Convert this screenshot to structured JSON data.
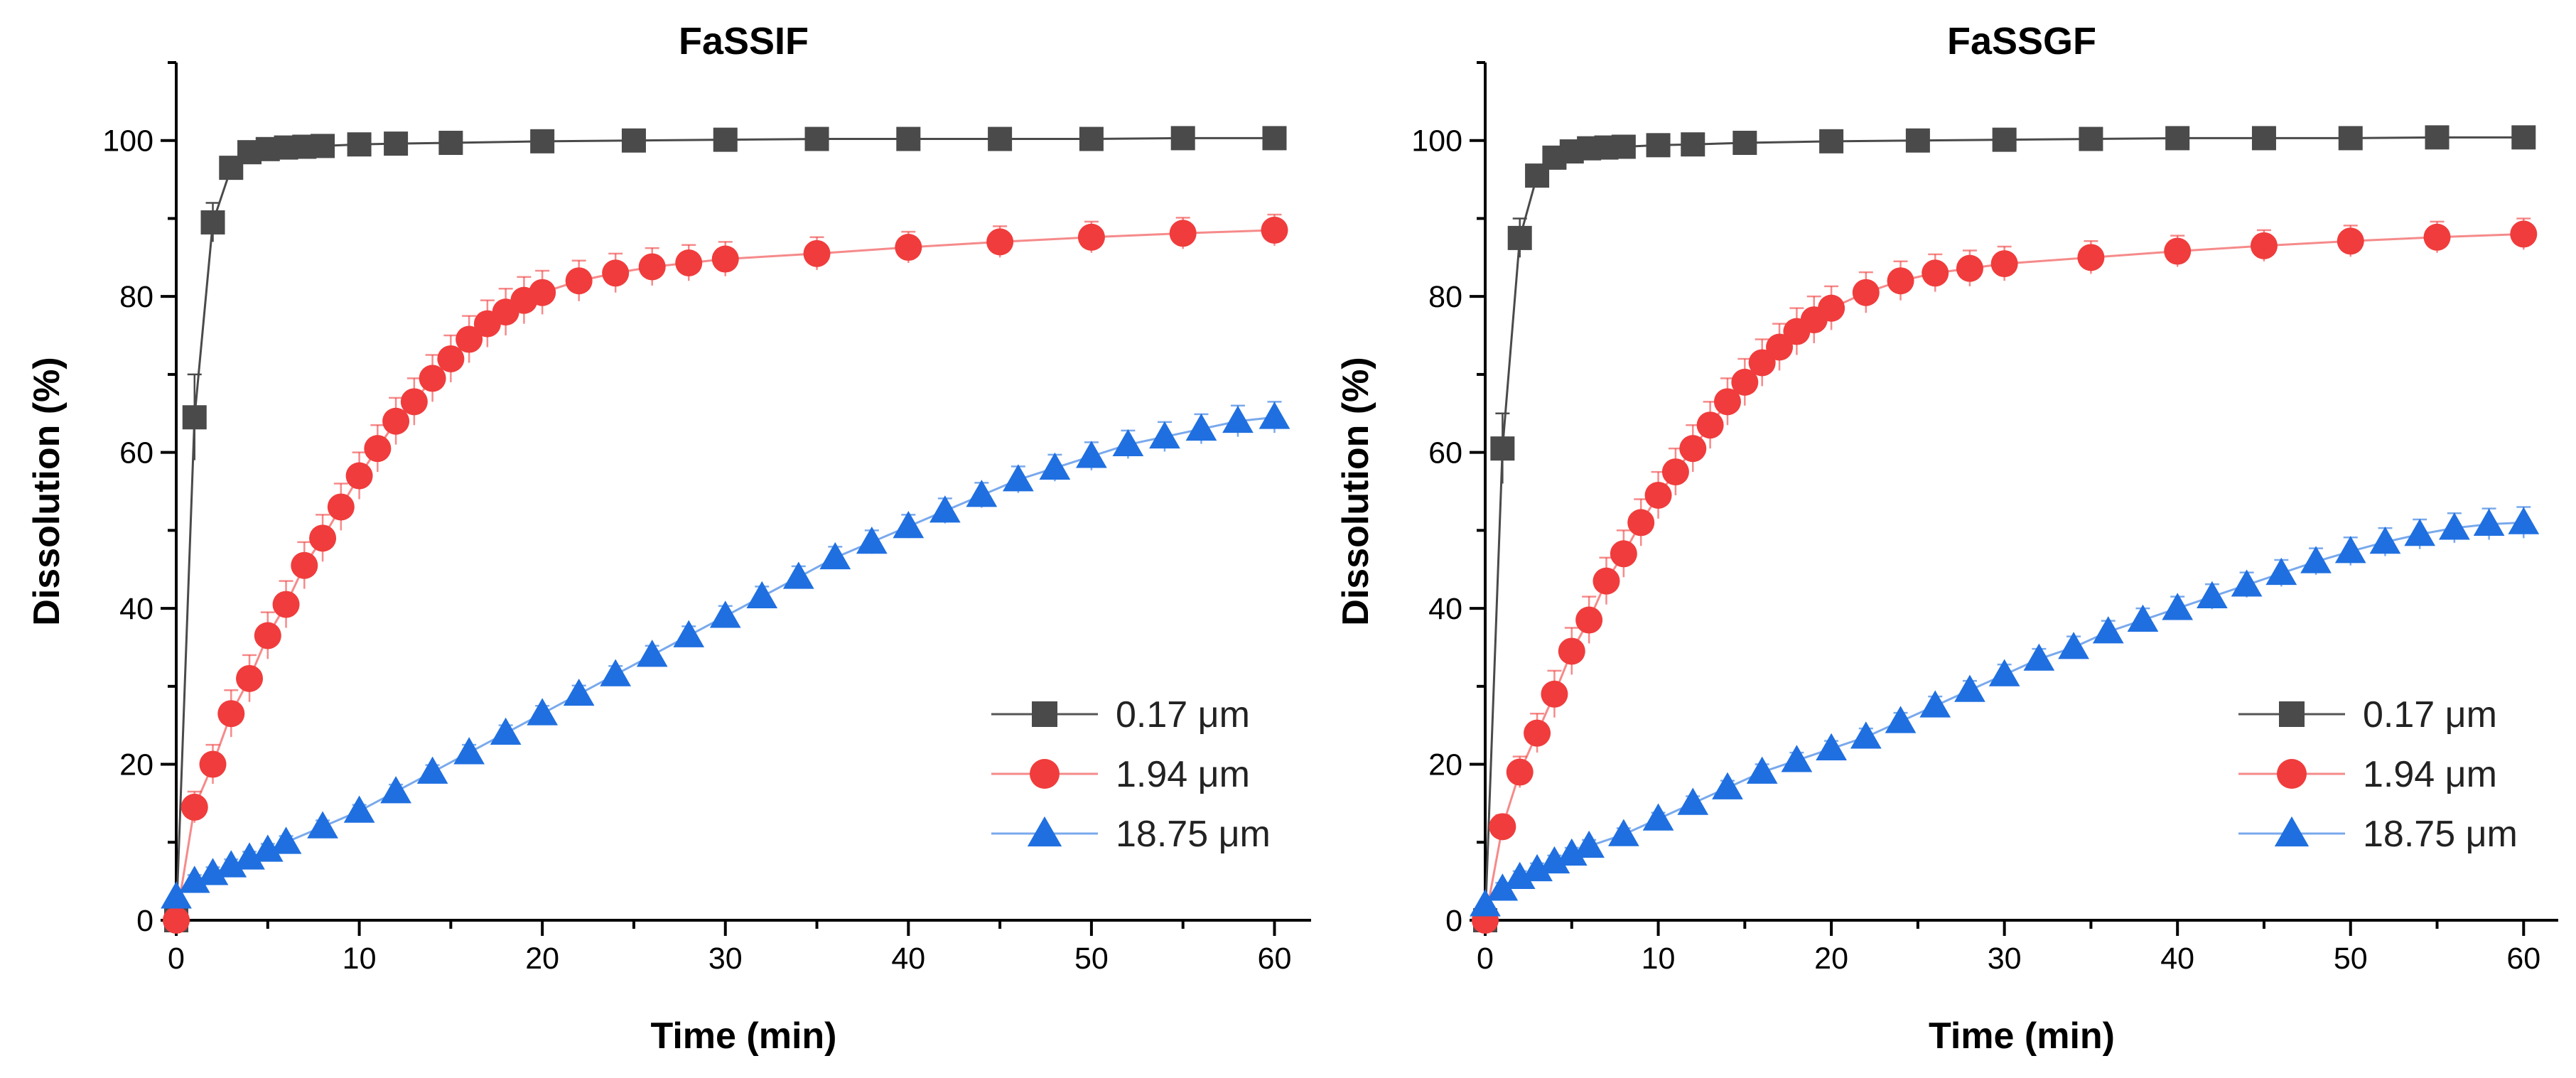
{
  "chart_data": [
    {
      "type": "scatter",
      "title": "FaSSIF",
      "xlabel": "Time (min)",
      "ylabel": "Dissolution (%)",
      "xlim": [
        0,
        62
      ],
      "ylim": [
        0,
        110
      ],
      "xticks": [
        0,
        10,
        20,
        30,
        40,
        50,
        60
      ],
      "yticks": [
        0,
        20,
        40,
        60,
        80,
        100
      ],
      "legend": "bottom-right",
      "grid": false,
      "series": [
        {
          "name": "0.17 μm",
          "marker": "square",
          "color": "#4a4a4a",
          "x": [
            0,
            1,
            2,
            3,
            4,
            5,
            6,
            7,
            8,
            10,
            12,
            15,
            20,
            25,
            30,
            35,
            40,
            45,
            50,
            55,
            60
          ],
          "y": [
            0,
            64.5,
            89.5,
            96.5,
            98.5,
            98.9,
            99.1,
            99.2,
            99.3,
            99.5,
            99.6,
            99.7,
            99.9,
            100.0,
            100.1,
            100.2,
            100.2,
            100.2,
            100.2,
            100.3,
            100.3
          ],
          "err": [
            0,
            5.5,
            2.5,
            1.2,
            0.6,
            0.4,
            0.3,
            0.3,
            0.3,
            0.3,
            0.3,
            0.3,
            0.3,
            0.3,
            0.3,
            0.3,
            0.3,
            0.3,
            0.3,
            0.3,
            0.3
          ]
        },
        {
          "name": "1.94 μm",
          "marker": "circle",
          "color": "#f03c3c",
          "x": [
            0,
            1,
            2,
            3,
            4,
            5,
            6,
            7,
            8,
            9,
            10,
            11,
            12,
            13,
            14,
            15,
            16,
            17,
            18,
            19,
            20,
            22,
            24,
            26,
            28,
            30,
            35,
            40,
            45,
            50,
            55,
            60
          ],
          "y": [
            0,
            14.5,
            20,
            26.5,
            31,
            36.5,
            40.5,
            45.5,
            49,
            53,
            57,
            60.5,
            64,
            66.5,
            69.5,
            72,
            74.5,
            76.5,
            78,
            79.5,
            80.5,
            82,
            83,
            83.8,
            84.3,
            84.8,
            85.5,
            86.3,
            87.0,
            87.6,
            88.1,
            88.5
          ],
          "err": [
            0,
            2,
            2.5,
            3,
            3,
            3,
            3,
            3,
            3,
            3,
            3,
            3,
            3,
            3,
            3,
            3,
            3,
            3,
            3,
            3,
            2.8,
            2.6,
            2.5,
            2.4,
            2.3,
            2.2,
            2.1,
            2.0,
            2.0,
            2.0,
            2.0,
            2.0
          ]
        },
        {
          "name": "18.75 μm",
          "marker": "triangle",
          "color": "#1f6fe0",
          "x": [
            0,
            1,
            2,
            3,
            4,
            5,
            6,
            8,
            10,
            12,
            14,
            16,
            18,
            20,
            22,
            24,
            26,
            28,
            30,
            32,
            34,
            36,
            38,
            40,
            42,
            44,
            46,
            48,
            50,
            52,
            54,
            56,
            58,
            60
          ],
          "y": [
            3,
            5,
            6,
            7,
            8,
            9,
            10,
            12,
            14,
            16.5,
            19,
            21.5,
            24,
            26.5,
            29,
            31.5,
            34,
            36.5,
            39,
            41.5,
            44,
            46.5,
            48.5,
            50.5,
            52.5,
            54.5,
            56.5,
            58,
            59.5,
            61,
            62,
            63,
            64,
            64.5
          ],
          "err": [
            0,
            0.8,
            0.8,
            0.8,
            0.8,
            0.8,
            0.8,
            0.8,
            0.8,
            0.9,
            0.9,
            1.0,
            1.0,
            1.0,
            1.1,
            1.1,
            1.2,
            1.2,
            1.3,
            1.3,
            1.4,
            1.4,
            1.5,
            1.5,
            1.6,
            1.6,
            1.7,
            1.7,
            1.8,
            1.8,
            1.9,
            1.9,
            2.0,
            2.0
          ]
        }
      ]
    },
    {
      "type": "scatter",
      "title": "FaSSGF",
      "xlabel": "Time (min)",
      "ylabel": "Dissolution (%)",
      "xlim": [
        0,
        62
      ],
      "ylim": [
        0,
        110
      ],
      "xticks": [
        0,
        10,
        20,
        30,
        40,
        50,
        60
      ],
      "yticks": [
        0,
        20,
        40,
        60,
        80,
        100
      ],
      "legend": "bottom-right",
      "grid": false,
      "series": [
        {
          "name": "0.17 μm",
          "marker": "square",
          "color": "#4a4a4a",
          "x": [
            0,
            1,
            2,
            3,
            4,
            5,
            6,
            7,
            8,
            10,
            12,
            15,
            20,
            25,
            30,
            35,
            40,
            45,
            50,
            55,
            60
          ],
          "y": [
            0,
            60.5,
            87.5,
            95.5,
            97.8,
            98.6,
            99.0,
            99.1,
            99.2,
            99.4,
            99.5,
            99.7,
            99.9,
            100.0,
            100.1,
            100.2,
            100.3,
            100.3,
            100.3,
            100.4,
            100.4
          ],
          "err": [
            0,
            4.5,
            2.5,
            1.2,
            0.6,
            0.4,
            0.3,
            0.3,
            0.3,
            0.3,
            0.3,
            0.3,
            0.3,
            0.3,
            0.3,
            0.3,
            0.3,
            0.3,
            0.3,
            0.3,
            0.3
          ]
        },
        {
          "name": "1.94 μm",
          "marker": "circle",
          "color": "#f03c3c",
          "x": [
            0,
            1,
            2,
            3,
            4,
            5,
            6,
            7,
            8,
            9,
            10,
            11,
            12,
            13,
            14,
            15,
            16,
            17,
            18,
            19,
            20,
            22,
            24,
            26,
            28,
            30,
            35,
            40,
            45,
            50,
            55,
            60
          ],
          "y": [
            0,
            12,
            19,
            24,
            29,
            34.5,
            38.5,
            43.5,
            47,
            51,
            54.5,
            57.5,
            60.5,
            63.5,
            66.5,
            69,
            71.5,
            73.5,
            75.5,
            77,
            78.5,
            80.5,
            82,
            83,
            83.6,
            84.2,
            85.0,
            85.8,
            86.5,
            87.1,
            87.6,
            88
          ],
          "err": [
            0,
            1.5,
            2,
            2.5,
            3,
            3,
            3,
            3,
            3,
            3,
            3,
            3,
            3,
            3,
            3,
            3,
            3,
            3,
            3,
            3,
            2.8,
            2.6,
            2.5,
            2.4,
            2.3,
            2.2,
            2.1,
            2.0,
            2.0,
            2.0,
            2.0,
            2.0
          ]
        },
        {
          "name": "18.75 μm",
          "marker": "triangle",
          "color": "#1f6fe0",
          "x": [
            0,
            1,
            2,
            3,
            4,
            5,
            6,
            8,
            10,
            12,
            14,
            16,
            18,
            20,
            22,
            24,
            26,
            28,
            30,
            32,
            34,
            36,
            38,
            40,
            42,
            44,
            46,
            48,
            50,
            52,
            54,
            56,
            58,
            60
          ],
          "y": [
            2,
            4,
            5.5,
            6.5,
            7.5,
            8.5,
            9.5,
            11,
            13,
            15,
            17,
            19,
            20.5,
            22,
            23.5,
            25.5,
            27.5,
            29.5,
            31.5,
            33.5,
            35,
            37,
            38.5,
            40,
            41.5,
            43,
            44.5,
            46,
            47.3,
            48.5,
            49.5,
            50.3,
            50.8,
            51
          ],
          "err": [
            0,
            0.8,
            0.8,
            0.8,
            0.8,
            0.8,
            0.8,
            0.8,
            0.8,
            0.9,
            0.9,
            1.0,
            1.0,
            1.0,
            1.1,
            1.1,
            1.2,
            1.2,
            1.3,
            1.3,
            1.4,
            1.4,
            1.5,
            1.5,
            1.6,
            1.6,
            1.7,
            1.7,
            1.8,
            1.8,
            1.9,
            1.9,
            2.0,
            2.0
          ]
        }
      ]
    }
  ]
}
